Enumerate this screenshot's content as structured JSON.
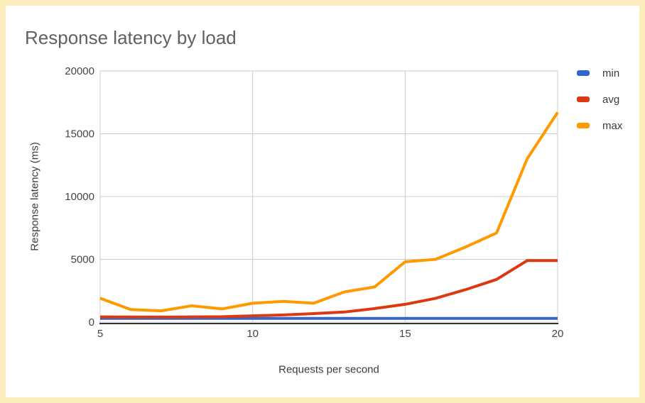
{
  "window": {
    "frame_border_color": "#fbeebc",
    "background": "#ffffff"
  },
  "header": {
    "title": "Response latency by load"
  },
  "colors": {
    "title": "#616161",
    "tick_label": "#444444",
    "axis_title": "#3c3c3c",
    "grid": "#cccccc",
    "plot_border": "#cccccc",
    "axis_line": "#333333"
  },
  "chart_data": {
    "type": "line",
    "title": "Response latency by load",
    "xlabel": "Requests per second",
    "ylabel": "Response latency (ms)",
    "x": [
      5,
      6,
      7,
      8,
      9,
      10,
      11,
      12,
      13,
      14,
      15,
      16,
      17,
      18,
      19,
      20
    ],
    "series": [
      {
        "name": "min",
        "color": "#3366cc",
        "values": [
          300,
          300,
          300,
          300,
          300,
          300,
          300,
          300,
          300,
          300,
          300,
          300,
          300,
          300,
          300,
          300
        ]
      },
      {
        "name": "avg",
        "color": "#dc3912",
        "values": [
          420,
          410,
          400,
          420,
          430,
          500,
          570,
          680,
          800,
          1080,
          1420,
          1900,
          2600,
          3400,
          4900,
          4900
        ]
      },
      {
        "name": "max",
        "color": "#ff9900",
        "values": [
          1900,
          1000,
          900,
          1300,
          1050,
          1500,
          1650,
          1500,
          2400,
          2800,
          4800,
          5000,
          6000,
          7100,
          13000,
          16700
        ]
      }
    ],
    "xlim": [
      5,
      20
    ],
    "ylim": [
      0,
      20000
    ],
    "x_ticks": [
      5,
      10,
      15,
      20
    ],
    "y_ticks": [
      0,
      5000,
      10000,
      15000,
      20000
    ],
    "grid": true,
    "legend_position": "right"
  }
}
